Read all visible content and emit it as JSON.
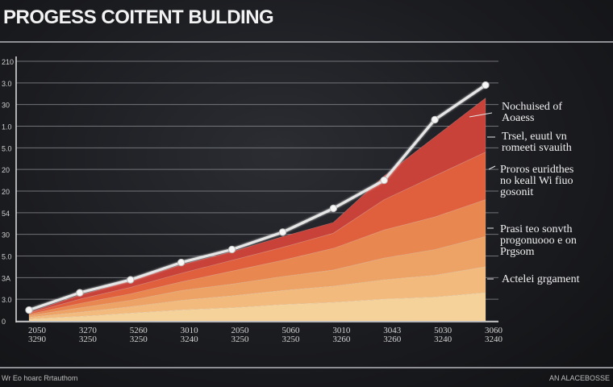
{
  "header": {
    "title": "PROGESS COITENT BULDING"
  },
  "footer": {
    "left": "Wr Eo hoarc Rrtauthom",
    "right": "AN ALACEBOSSE"
  },
  "annotations": [
    {
      "text": "Nochuised of\nAoaess"
    },
    {
      "text": "Trsel, euutl vn\nromeeti svauith"
    },
    {
      "text": "Proros euridthes\nno keall Wi fiuo\ngosonit"
    },
    {
      "text": "Prasi teo sonvth\nprogonuooo e on\nPrgsom"
    },
    {
      "text": "Actelei grgament"
    }
  ],
  "colors": {
    "line": "#e6e6e6",
    "bands": [
      "#f5d29a",
      "#f2bb7d",
      "#eda365",
      "#e8874f",
      "#e0603e",
      "#c8423a"
    ]
  },
  "chart_data": {
    "type": "area",
    "title": "PROGESS COITENT BULDING",
    "xlabel": "",
    "ylabel": "",
    "categories": [
      "2050\n3290",
      "3270\n3250",
      "5260\n3250",
      "3010\n3240",
      "2050\n3250",
      "5060\n3250",
      "3010\n3260",
      "3043\n3260",
      "5030\n3240",
      "3060\n3240"
    ],
    "y_ticks": [
      "0",
      "3.0",
      "3A",
      "5.0",
      "30",
      "54",
      "20",
      "20",
      "5.0",
      "1.0",
      "30",
      "3.0",
      "210"
    ],
    "ylim": [
      0,
      12
    ],
    "grid": true,
    "line_series": {
      "values": [
        0.5,
        1.3,
        1.9,
        2.7,
        3.3,
        4.1,
        5.2,
        6.5,
        9.3,
        10.9
      ]
    },
    "stacked_series": [
      {
        "values": [
          0.08,
          0.2,
          0.35,
          0.5,
          0.6,
          0.75,
          0.85,
          1.0,
          1.1,
          1.3
        ]
      },
      {
        "values": [
          0.08,
          0.2,
          0.3,
          0.45,
          0.55,
          0.65,
          0.75,
          0.9,
          1.0,
          1.2
        ]
      },
      {
        "values": [
          0.08,
          0.2,
          0.3,
          0.45,
          0.55,
          0.65,
          0.75,
          1.0,
          1.2,
          1.4
        ]
      },
      {
        "values": [
          0.06,
          0.2,
          0.3,
          0.4,
          0.6,
          0.75,
          1.0,
          1.3,
          1.5,
          1.7
        ]
      },
      {
        "values": [
          0.06,
          0.2,
          0.3,
          0.4,
          0.5,
          0.6,
          0.7,
          1.4,
          1.9,
          2.2
        ]
      },
      {
        "values": [
          0.04,
          0.2,
          0.3,
          0.4,
          0.4,
          0.5,
          0.5,
          1.1,
          1.8,
          2.5
        ]
      }
    ]
  }
}
